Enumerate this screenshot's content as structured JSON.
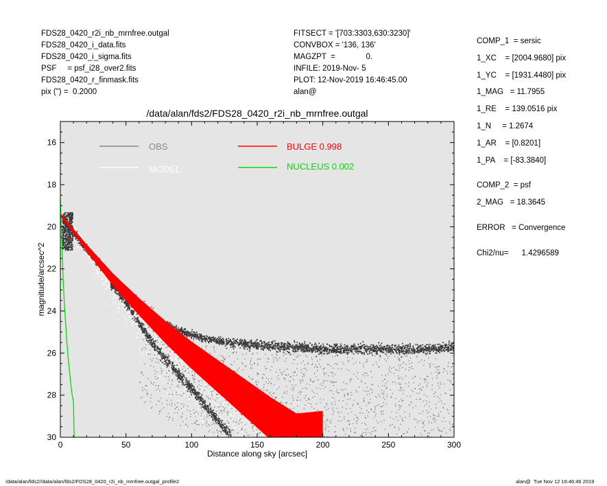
{
  "header_left": [
    "FDS28_0420_r2i_nb_mrnfree.outgal",
    "FDS28_0420_i_data.fits",
    "FDS28_0420_i_sigma.fits",
    "PSF     = psf_i28_over2.fits",
    "FDS28_0420_r_finmask.fits",
    "pix (\") =  0.2000"
  ],
  "header_mid": [
    "FITSECT = '[703:3303,630:3230]'",
    "CONVBOX = '136, 136'",
    "MAGZPT  =              0.",
    "INFILE: 2019-Nov- 5",
    "PLOT: 12-Nov-2019 16:46:45.00",
    "alan@"
  ],
  "header_right": [
    "COMP_1  = sersic",
    "1_XC    = [2004.9680] pix",
    "1_YC    = [1931.4480] pix",
    "1_MAG   = 11.7955",
    "1_RE    = 139.0516 pix",
    "1_N     = 1.2674",
    "1_AR    = [0.8201]",
    "1_PA    = [-83.3840]",
    "",
    "COMP_2  = psf",
    "2_MAG   = 18.3645",
    "",
    "ERROR   = Convergence",
    "",
    "Chi2/nu=      1.4296589"
  ],
  "footer_left": "/data/alan/fds2//data/alan/fds2/FDS28_0420_r2i_nb_mrnfree.outgal_profile2",
  "footer_right": "alan@  Tue Nov 12 16:46:46 2019",
  "colors": {
    "plot_bg": "#e5e5e5",
    "obs": "#3a3a3a",
    "obs_faint": "#777777",
    "model": "#ffffff",
    "bulge": "#ff0000",
    "nucleus": "#00dd00"
  },
  "chart_data": {
    "type": "scatter",
    "title": "/data/alan/fds2/FDS28_0420_r2i_nb_mrnfree.outgal",
    "xlabel": "Distance along sky [arcsec]",
    "ylabel": "magnitude/arcsec^2",
    "xlim": [
      0,
      300
    ],
    "ylim": [
      30,
      15
    ],
    "y_inverted": true,
    "xticks": [
      0,
      50,
      100,
      150,
      200,
      250,
      300
    ],
    "yticks": [
      16,
      18,
      20,
      22,
      24,
      26,
      28,
      30
    ],
    "legend": [
      {
        "label": "OBS",
        "color": "#888888"
      },
      {
        "label": "MODEL",
        "color": "#ffffff"
      },
      {
        "label": "BULGE  0.998",
        "color": "#ff0000"
      },
      {
        "label": "NUCLEUS  0.002",
        "color": "#00dd00"
      }
    ],
    "series": [
      {
        "name": "OBS",
        "x": [
          1,
          5,
          10,
          20,
          30,
          40,
          50,
          60,
          70,
          80,
          90,
          100,
          110,
          120,
          130,
          150,
          175,
          200,
          225,
          250,
          275,
          300
        ],
        "y": [
          19.6,
          19.9,
          20.3,
          21.1,
          21.8,
          22.5,
          23.1,
          23.7,
          24.2,
          24.6,
          24.9,
          25.1,
          25.3,
          25.4,
          25.5,
          25.6,
          25.7,
          25.8,
          25.8,
          25.8,
          25.8,
          25.7
        ]
      },
      {
        "name": "OBS (lower branch)",
        "x": [
          40,
          50,
          60,
          70,
          80,
          90,
          100,
          110,
          120,
          130
        ],
        "y": [
          22.8,
          23.6,
          24.6,
          25.5,
          26.3,
          27.0,
          27.7,
          28.5,
          29.2,
          30.0
        ]
      },
      {
        "name": "MODEL",
        "x": [
          0,
          20,
          40,
          60,
          80,
          100,
          120,
          140,
          160,
          175
        ],
        "y": [
          19.3,
          20.9,
          22.4,
          23.7,
          24.9,
          26.0,
          27.0,
          28.0,
          29.1,
          30.0
        ]
      },
      {
        "name": "BULGE",
        "x": [
          0,
          20,
          40,
          60,
          80,
          100,
          120,
          140,
          160,
          180,
          185
        ],
        "y": [
          19.4,
          21.0,
          22.5,
          23.8,
          25.0,
          26.1,
          27.1,
          28.1,
          29.1,
          30.0,
          30.0
        ]
      },
      {
        "name": "NUCLEUS",
        "x": [
          0,
          1,
          2,
          3,
          4,
          5,
          6,
          7,
          8,
          9,
          10,
          10.5
        ],
        "y": [
          18.7,
          20.5,
          22.3,
          23.6,
          24.6,
          25.5,
          26.3,
          26.9,
          27.5,
          28.0,
          28.3,
          30.0
        ]
      }
    ]
  }
}
